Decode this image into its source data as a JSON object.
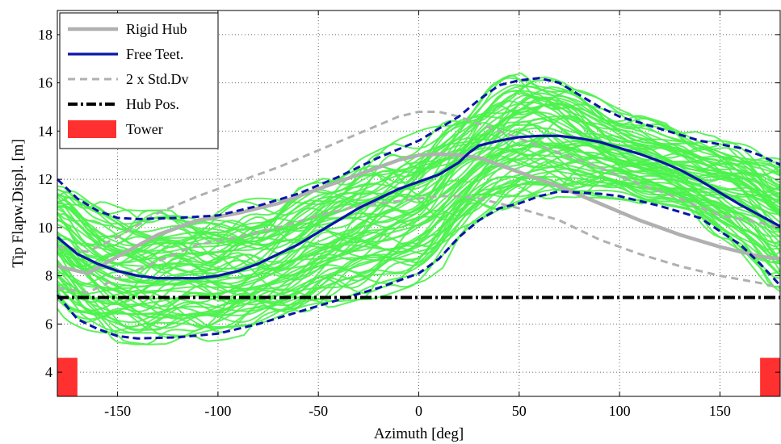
{
  "chart_data": {
    "type": "line",
    "xlabel": "Azimuth [deg]",
    "ylabel": "Tip Flapw.Displ. [m]",
    "xlim": [
      -180,
      180
    ],
    "ylim": [
      3,
      19
    ],
    "xticks": [
      -150,
      -100,
      -50,
      0,
      50,
      100,
      150
    ],
    "yticks": [
      4,
      6,
      8,
      10,
      12,
      14,
      16,
      18
    ],
    "grid": "dotted",
    "legend_position": "top-left",
    "legend": [
      "Rigid Hub",
      "Free Teet.",
      "2 x Std.Dv",
      "Hub Pos.",
      "Tower"
    ],
    "colors": {
      "rigid_hub": "#b0b0b0",
      "free_teet": "#0a14a8",
      "std_dev": "#0a14a8",
      "std_dev_rigid": "#b0b0b0",
      "hub_pos": "#000000",
      "tower": "#ff3030",
      "samples": "#4cf24c"
    },
    "series": [
      {
        "name": "Rigid Hub",
        "style": "solid",
        "x": [
          -180,
          -165,
          -150,
          -130,
          -110,
          -90,
          -70,
          -50,
          -30,
          -10,
          0,
          10,
          20,
          30,
          50,
          70,
          90,
          110,
          130,
          150,
          170,
          180
        ],
        "values": [
          8.4,
          8.1,
          8.8,
          9.7,
          10.3,
          10.6,
          11.0,
          11.6,
          12.2,
          12.8,
          13.0,
          13.05,
          13.0,
          12.9,
          12.3,
          11.7,
          11.0,
          10.3,
          9.7,
          9.2,
          8.8,
          8.7
        ]
      },
      {
        "name": "Free Teet.",
        "style": "solid",
        "x": [
          -180,
          -170,
          -160,
          -150,
          -140,
          -130,
          -120,
          -110,
          -100,
          -90,
          -80,
          -70,
          -60,
          -50,
          -40,
          -30,
          -20,
          -10,
          0,
          10,
          20,
          25,
          30,
          40,
          50,
          60,
          70,
          80,
          90,
          100,
          110,
          120,
          130,
          140,
          150,
          160,
          170,
          180
        ],
        "values": [
          9.6,
          8.9,
          8.5,
          8.2,
          8.0,
          7.9,
          7.9,
          7.9,
          8.0,
          8.2,
          8.5,
          8.9,
          9.3,
          9.8,
          10.3,
          10.8,
          11.2,
          11.6,
          11.9,
          12.2,
          12.7,
          13.1,
          13.4,
          13.6,
          13.75,
          13.8,
          13.8,
          13.7,
          13.55,
          13.3,
          13.05,
          12.75,
          12.4,
          11.95,
          11.45,
          10.95,
          10.5,
          10.05
        ]
      },
      {
        "name": "2 x Std.Dv",
        "style": "dashed",
        "x": [
          -180,
          -170,
          -160,
          -150,
          -140,
          -120,
          -100,
          -80,
          -60,
          -40,
          -20,
          0,
          10,
          20,
          30,
          40,
          50,
          60,
          70,
          80,
          90,
          100,
          120,
          140,
          160,
          170,
          180
        ],
        "values": [
          12.0,
          11.2,
          10.7,
          10.4,
          10.35,
          10.4,
          10.5,
          10.9,
          11.4,
          12.1,
          12.9,
          13.6,
          14.1,
          14.6,
          15.3,
          15.9,
          16.1,
          16.2,
          16.0,
          15.5,
          15.0,
          14.6,
          14.1,
          13.6,
          13.3,
          13.0,
          12.6
        ]
      },
      {
        "name": "2 x Std.Dv lower",
        "style": "dashed",
        "x": [
          -180,
          -170,
          -160,
          -150,
          -140,
          -120,
          -100,
          -80,
          -60,
          -40,
          -20,
          0,
          10,
          20,
          30,
          40,
          50,
          60,
          70,
          80,
          90,
          100,
          120,
          140,
          160,
          170,
          180
        ],
        "values": [
          7.2,
          6.2,
          5.8,
          5.5,
          5.4,
          5.45,
          5.6,
          6.0,
          6.5,
          7.0,
          7.5,
          8.1,
          8.7,
          9.6,
          10.3,
          10.8,
          11.0,
          11.3,
          11.5,
          11.45,
          11.4,
          11.3,
          10.9,
          10.4,
          9.3,
          8.5,
          7.6
        ]
      },
      {
        "name": "Rigid Hub upper",
        "style": "dashed",
        "x": [
          -180,
          -165,
          -150,
          -130,
          -110,
          -90,
          -70,
          -50,
          -30,
          -10,
          0,
          10,
          20,
          30,
          50,
          70,
          90,
          110,
          130,
          150,
          170,
          180
        ],
        "values": [
          9.2,
          9.0,
          9.6,
          10.6,
          11.3,
          11.9,
          12.5,
          13.2,
          13.9,
          14.6,
          14.8,
          14.8,
          14.6,
          14.3,
          13.7,
          13.1,
          12.5,
          11.8,
          11.2,
          10.5,
          10.2,
          10.0
        ]
      },
      {
        "name": "Rigid Hub lower",
        "style": "dashed",
        "x": [
          -180,
          -165,
          -150,
          -130,
          -110,
          -90,
          -70,
          -50,
          -30,
          -10,
          0,
          10,
          20,
          30,
          50,
          70,
          90,
          110,
          130,
          150,
          170,
          180
        ],
        "values": [
          7.5,
          7.3,
          7.9,
          8.6,
          9.3,
          9.6,
          10.0,
          10.5,
          10.9,
          11.1,
          11.2,
          11.3,
          11.3,
          11.2,
          10.8,
          10.3,
          9.5,
          8.9,
          8.4,
          8.0,
          7.7,
          7.5
        ]
      },
      {
        "name": "Hub Pos.",
        "style": "dash-dot",
        "x": [
          -180,
          180
        ],
        "values": [
          7.1,
          7.1
        ]
      }
    ],
    "tower": [
      {
        "x0": -180,
        "x1": -170,
        "y0": 3,
        "y1": 4.6
      },
      {
        "x0": 170,
        "x1": 180,
        "y0": 3,
        "y1": 4.6
      }
    ]
  }
}
